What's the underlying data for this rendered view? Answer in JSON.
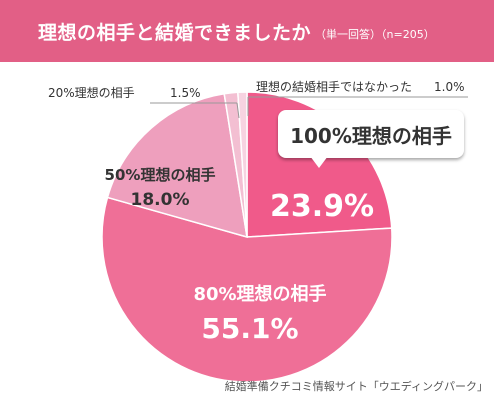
{
  "header": {
    "title": "理想の相手と結婚できましたか",
    "subtitle": "（単一回答）（n=205）"
  },
  "colors": {
    "header_bg": "#e25f86",
    "slice_100": "#f05a8a",
    "slice_80": "#ef6f97",
    "slice_50": "#ee9fbd",
    "slice_20": "#f3bfd2",
    "slice_0": "#f7d3e1",
    "text_dark": "#333333",
    "leader": "#999999"
  },
  "chart_data": {
    "type": "pie",
    "start_angle_deg": 0,
    "direction": "clockwise",
    "slices": [
      {
        "label": "100%理想の相手",
        "value": 23.9,
        "display": "23.9%"
      },
      {
        "label": "80%理想の相手",
        "value": 55.1,
        "display": "55.1%"
      },
      {
        "label": "50%理想の相手",
        "value": 18.0,
        "display": "18.0%"
      },
      {
        "label": "20%理想の相手",
        "value": 1.5,
        "display": "1.5%"
      },
      {
        "label": "理想の結婚相手ではなかった",
        "value": 1.0,
        "display": "1.0%"
      }
    ]
  },
  "source": "結婚準備クチコミ情報サイト「ウエディングパーク」"
}
